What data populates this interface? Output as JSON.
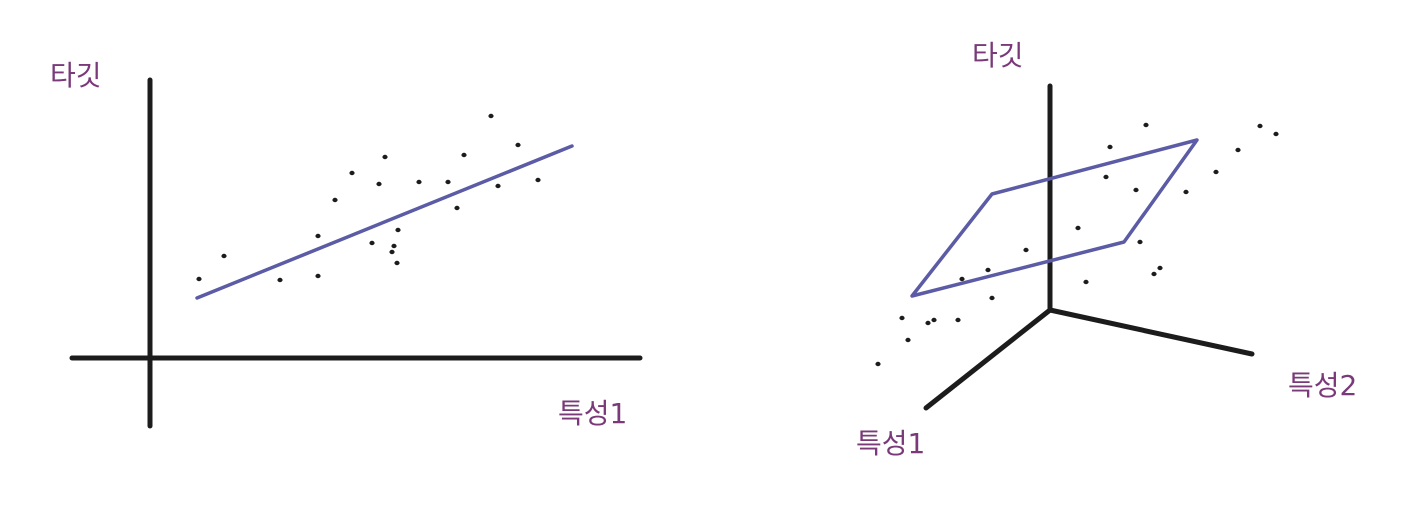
{
  "left_panel": {
    "y_label": "타깃",
    "x_label": "특성1"
  },
  "right_panel": {
    "z_label": "타깃",
    "feature1_label": "특성1",
    "feature2_label": "특성2"
  },
  "colors": {
    "axis": "#1c1c1c",
    "fit": "#5b5ba6",
    "label": "#7a3a7a"
  }
}
